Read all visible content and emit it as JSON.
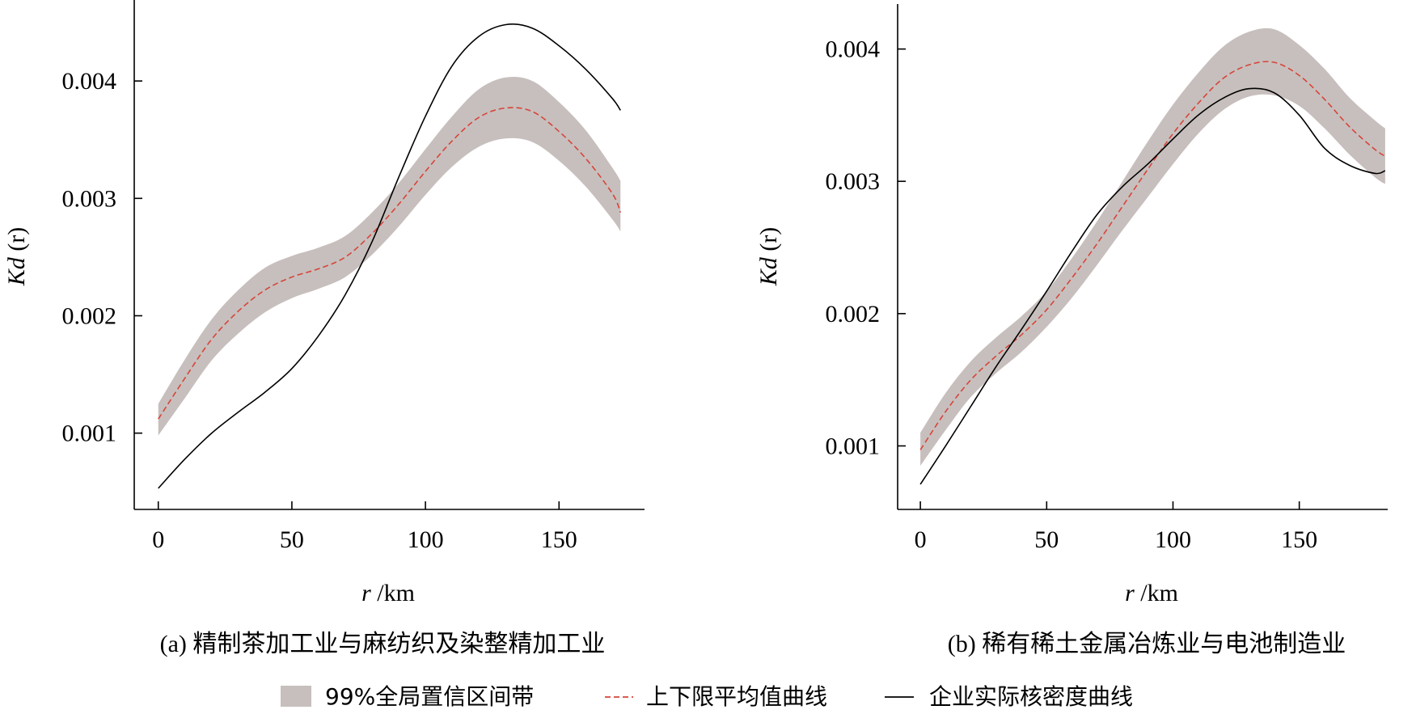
{
  "chart_data": [
    {
      "type": "line",
      "caption": "(a) 精制茶加工业与麻纺织及染整精加工业",
      "xlabel": "r /km",
      "ylabel": "Kd (r)",
      "xlim": [
        -9,
        182
      ],
      "ylim": [
        0.00035,
        0.00469
      ],
      "xticks": [
        0,
        50,
        100,
        150
      ],
      "xtick_labels": [
        "0",
        "50",
        "100",
        "150"
      ],
      "yticks": [
        0.001,
        0.002,
        0.003,
        0.004
      ],
      "ytick_labels": [
        "0.001",
        "0.002",
        "0.003",
        "0.004"
      ],
      "x": [
        0,
        10,
        20,
        30,
        40,
        50,
        60,
        70,
        80,
        90,
        100,
        110,
        120,
        130,
        140,
        150,
        160,
        170,
        173
      ],
      "band": {
        "lower": [
          0.00098,
          0.0013,
          0.00162,
          0.00185,
          0.00203,
          0.00215,
          0.00223,
          0.00233,
          0.00252,
          0.00276,
          0.00303,
          0.00327,
          0.00344,
          0.00351,
          0.00348,
          0.00332,
          0.0031,
          0.00282,
          0.00272
        ],
        "upper": [
          0.00125,
          0.00163,
          0.00197,
          0.00222,
          0.00241,
          0.00251,
          0.00258,
          0.00268,
          0.00288,
          0.00313,
          0.00342,
          0.0037,
          0.00393,
          0.00403,
          0.004,
          0.00382,
          0.00358,
          0.00326,
          0.00315
        ]
      },
      "series": [
        {
          "role": "mean",
          "values": [
            0.00112,
            0.00147,
            0.0018,
            0.00204,
            0.00222,
            0.00233,
            0.0024,
            0.0025,
            0.0027,
            0.00295,
            0.00323,
            0.00349,
            0.00369,
            0.00377,
            0.00374,
            0.00357,
            0.00334,
            0.00304,
            0.00288
          ]
        },
        {
          "role": "actual",
          "values": [
            0.00053,
            0.00078,
            0.001,
            0.00118,
            0.00135,
            0.00155,
            0.00183,
            0.00218,
            0.00263,
            0.00318,
            0.0037,
            0.00413,
            0.00438,
            0.00448,
            0.00445,
            0.0043,
            0.0041,
            0.00385,
            0.00375
          ]
        }
      ]
    },
    {
      "type": "line",
      "caption": "(b) 稀有稀土金属冶炼业与电池制造业",
      "xlabel": "r /km",
      "ylabel": "Kd (r)",
      "xlim": [
        -9,
        185
      ],
      "ylim": [
        0.00052,
        0.00434
      ],
      "xticks": [
        0,
        50,
        100,
        150
      ],
      "xtick_labels": [
        "0",
        "50",
        "100",
        "150"
      ],
      "yticks": [
        0.001,
        0.002,
        0.003,
        0.004
      ],
      "ytick_labels": [
        "0.001",
        "0.002",
        "0.003",
        "0.004"
      ],
      "x": [
        0,
        10,
        20,
        30,
        40,
        50,
        60,
        70,
        80,
        90,
        100,
        110,
        120,
        130,
        140,
        150,
        160,
        170,
        180,
        184
      ],
      "band": {
        "lower": [
          0.00085,
          0.00112,
          0.00137,
          0.00155,
          0.00171,
          0.0019,
          0.00212,
          0.00237,
          0.00263,
          0.00288,
          0.00313,
          0.00336,
          0.00354,
          0.00364,
          0.00365,
          0.00357,
          0.0034,
          0.0032,
          0.00303,
          0.00298
        ],
        "upper": [
          0.0011,
          0.0014,
          0.00164,
          0.00182,
          0.00198,
          0.00217,
          0.00242,
          0.0027,
          0.003,
          0.0033,
          0.00358,
          0.00382,
          0.00402,
          0.00413,
          0.00415,
          0.00403,
          0.00385,
          0.00363,
          0.00346,
          0.0034
        ]
      },
      "series": [
        {
          "role": "mean",
          "values": [
            0.00097,
            0.00126,
            0.0015,
            0.00168,
            0.00184,
            0.00203,
            0.00227,
            0.00253,
            0.00281,
            0.00309,
            0.00336,
            0.00359,
            0.00378,
            0.00388,
            0.0039,
            0.0038,
            0.00362,
            0.00341,
            0.00324,
            0.00319
          ]
        },
        {
          "role": "actual",
          "values": [
            0.00071,
            0.001,
            0.0013,
            0.0016,
            0.00188,
            0.00217,
            0.00247,
            0.00275,
            0.00296,
            0.00313,
            0.00332,
            0.0035,
            0.00363,
            0.0037,
            0.00367,
            0.0035,
            0.00325,
            0.00312,
            0.00306,
            0.00308
          ]
        }
      ]
    }
  ],
  "legend": {
    "band_label": "99%全局置信区间带",
    "mean_label": "上下限平均值曲线",
    "actual_label": "企业实际核密度曲线"
  },
  "colors": {
    "band": "#c7bfbd",
    "mean": "#d6453a",
    "actual": "#000000"
  }
}
